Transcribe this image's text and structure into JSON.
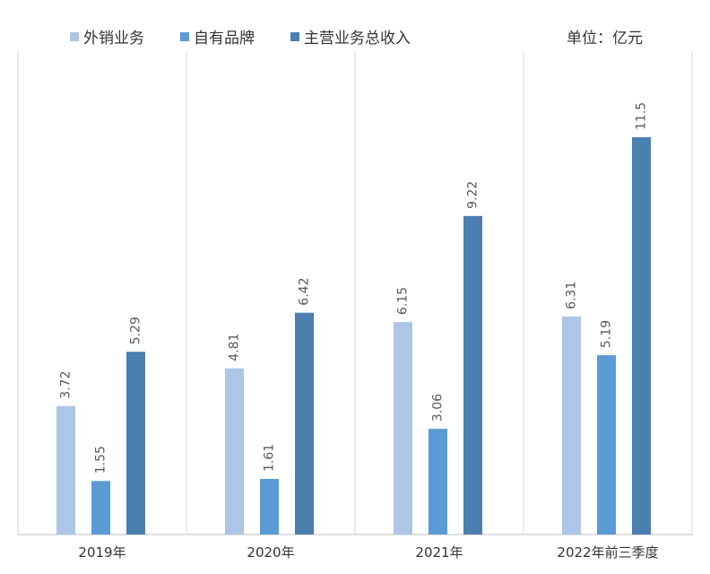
{
  "chart_data": {
    "type": "bar",
    "unit_label": "单位：亿元",
    "categories": [
      "2019年",
      "2020年",
      "2021年",
      "2022年前三季度"
    ],
    "series": [
      {
        "name": "外销业务",
        "color": "#adc6e5",
        "values": [
          3.72,
          4.81,
          6.15,
          6.31
        ],
        "labels": [
          "3.72",
          "4.81",
          "6.15",
          "6.31"
        ]
      },
      {
        "name": "自有品牌",
        "color": "#5b9bd5",
        "values": [
          1.55,
          1.61,
          3.06,
          5.19
        ],
        "labels": [
          "1.55",
          "1.61",
          "3.06",
          "5.19"
        ]
      },
      {
        "name": "主营业务总收入",
        "color": "#4a7fb0",
        "values": [
          5.29,
          6.42,
          9.22,
          11.5
        ],
        "labels": [
          "5.29",
          "6.42",
          "9.22",
          "11.5"
        ]
      }
    ],
    "ylim": [
      0,
      12
    ],
    "grid": false,
    "legend_position": "top",
    "data_labels": true,
    "label_orientation": "vertical"
  }
}
